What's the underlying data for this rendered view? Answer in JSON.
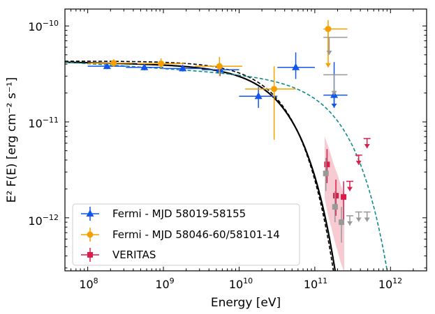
{
  "chart_data": {
    "type": "scatter",
    "xlabel": "Energy [eV]",
    "ylabel": "E² F(E) [erg cm⁻² s⁻¹]",
    "xscale": "log",
    "yscale": "log",
    "xlim": [
      50000000.0,
      3000000000000.0
    ],
    "ylim": [
      2.8e-13,
      1.5e-10
    ],
    "xtick_labels": [
      {
        "base": "10",
        "exp": "8",
        "value": 100000000.0
      },
      {
        "base": "10",
        "exp": "9",
        "value": 1000000000.0
      },
      {
        "base": "10",
        "exp": "10",
        "value": 10000000000.0
      },
      {
        "base": "10",
        "exp": "11",
        "value": 100000000000.0
      },
      {
        "base": "10",
        "exp": "12",
        "value": 1000000000000.0
      }
    ],
    "ytick_labels": [
      {
        "base": "10",
        "exp": "−12",
        "value": 1e-12
      },
      {
        "base": "10",
        "exp": "−11",
        "value": 1e-11
      },
      {
        "base": "10",
        "exp": "−10",
        "value": 1e-10
      }
    ],
    "legend_position": "lower-left",
    "legend": [
      {
        "label": "Fermi - MJD 58019-58155",
        "color": "#1155ee",
        "marker": "triangle"
      },
      {
        "label": "Fermi - MJD 58046-60/58101-14",
        "color": "#f5a000",
        "marker": "circle"
      },
      {
        "label": "VERITAS",
        "color": "#dc1c4a",
        "marker": "plus"
      }
    ],
    "series": [
      {
        "name": "Fermi - MJD 58019-58155",
        "color": "#1155ee",
        "marker": "triangle",
        "points": [
          {
            "x": 180000000.0,
            "y": 3.8e-11,
            "xlo": 100000000.0,
            "xhi": 320000000.0,
            "ylo": 3.55e-11,
            "yhi": 4.1e-11
          },
          {
            "x": 560000000.0,
            "y": 3.7e-11,
            "xlo": 320000000.0,
            "xhi": 1000000000.0,
            "ylo": 3.45e-11,
            "yhi": 3.95e-11
          },
          {
            "x": 1800000000.0,
            "y": 3.6e-11,
            "xlo": 1000000000.0,
            "xhi": 3200000000.0,
            "ylo": 3.35e-11,
            "yhi": 3.9e-11
          },
          {
            "x": 5600000000.0,
            "y": 3.5e-11,
            "xlo": 3200000000.0,
            "xhi": 10000000000.0,
            "ylo": 3e-11,
            "yhi": 4.1e-11
          },
          {
            "x": 18000000000.0,
            "y": 1.85e-11,
            "xlo": 10000000000.0,
            "xhi": 32000000000.0,
            "ylo": 1.4e-11,
            "yhi": 2.3e-11
          },
          {
            "x": 56000000000.0,
            "y": 3.7e-11,
            "xlo": 32000000000.0,
            "xhi": 100000000000.0,
            "ylo": 2.8e-11,
            "yhi": 5.3e-11
          },
          {
            "x": 180000000000.0,
            "y": 1.9e-11,
            "xlo": 130000000000.0,
            "xhi": 270000000000.0,
            "ylo": 1.45e-11,
            "yhi": 4.2e-11,
            "ul_to": 1.4e-11
          }
        ]
      },
      {
        "name": "Fermi - MJD 58046-60/58101-14",
        "color": "#f5a000",
        "marker": "circle",
        "points": [
          {
            "x": 220000000.0,
            "y": 4.1e-11,
            "xlo": 100000000.0,
            "xhi": 390000000.0,
            "ylo": 3.75e-11,
            "yhi": 4.5e-11
          },
          {
            "x": 930000000.0,
            "y": 4.05e-11,
            "xlo": 450000000.0,
            "xhi": 1900000000.0,
            "ylo": 3.6e-11,
            "yhi": 4.6e-11
          },
          {
            "x": 5500000000.0,
            "y": 3.8e-11,
            "xlo": 2600000000.0,
            "xhi": 11000000000.0,
            "ylo": 3e-11,
            "yhi": 4.75e-11
          },
          {
            "x": 29000000000.0,
            "y": 2.2e-11,
            "xlo": 12000000000.0,
            "xhi": 56000000000.0,
            "ylo": 6.5e-12,
            "yhi": 3.8e-11
          },
          {
            "x": 150000000000.0,
            "y": 9.3e-11,
            "xlo": 130000000000.0,
            "xhi": 270000000000.0,
            "ylo": 5e-11,
            "yhi": 1.15e-10,
            "ul_to": 3.7e-11
          }
        ]
      },
      {
        "name": "VERITAS",
        "color": "#dc1c4a",
        "marker": "plus",
        "points": [
          {
            "x": 145000000000.0,
            "y": 3.6e-12,
            "xlo": 135000000000.0,
            "xhi": 155000000000.0,
            "ylo": 2.3e-12,
            "yhi": 5.2e-12
          },
          {
            "x": 190000000000.0,
            "y": 1.7e-12,
            "xlo": 175000000000.0,
            "xhi": 205000000000.0,
            "ylo": 1.05e-12,
            "yhi": 2.5e-12
          },
          {
            "x": 240000000000.0,
            "y": 1.65e-12,
            "xlo": 220000000000.0,
            "xhi": 260000000000.0,
            "ylo": 9.5e-13,
            "yhi": 2.4e-12
          }
        ],
        "upper_limits": [
          {
            "x": 290000000000.0,
            "y": 2.4e-12
          },
          {
            "x": 380000000000.0,
            "y": 4.5e-12
          },
          {
            "x": 490000000000.0,
            "y": 6.7e-12
          }
        ]
      },
      {
        "name": "EBL-absorbed (grey)",
        "color": "#999999",
        "marker": "plus",
        "points": [
          {
            "x": 140000000000.0,
            "y": 2.9e-12,
            "xlo": 130000000000.0,
            "xhi": 150000000000.0,
            "ylo": 1.9e-12,
            "yhi": 4.2e-12
          },
          {
            "x": 185000000000.0,
            "y": 1.3e-12,
            "xlo": 175000000000.0,
            "xhi": 200000000000.0,
            "ylo": 9e-13,
            "yhi": 1.9e-12
          },
          {
            "x": 225000000000.0,
            "y": 9e-13,
            "xlo": 210000000000.0,
            "xhi": 240000000000.0,
            "ylo": 5.5e-13,
            "yhi": 1.3e-12
          }
        ],
        "upper_limits": [
          {
            "x": 290000000000.0,
            "y": 1.05e-12
          },
          {
            "x": 380000000000.0,
            "y": 1.15e-12
          },
          {
            "x": 490000000000.0,
            "y": 1.15e-12
          }
        ],
        "flux_ul_bars": [
          {
            "x": 180000000000.0,
            "xlo": 130000000000.0,
            "xhi": 270000000000.0,
            "y": 3.1e-11,
            "ul_to": 1.9e-11
          },
          {
            "x": 155000000000.0,
            "xlo": 130000000000.0,
            "xhi": 270000000000.0,
            "y": 7.6e-11,
            "ul_to": 5e-11
          }
        ]
      }
    ],
    "veritas_band": {
      "color": "#f4a6b4",
      "x": [
        135000000000.0,
        150000000000.0,
        165000000000.0,
        180000000000.0,
        200000000000.0,
        220000000000.0,
        245000000000.0
      ],
      "upper": [
        7e-12,
        5.6e-12,
        4.4e-12,
        3.5e-12,
        2.8e-12,
        2.2e-12,
        1.7e-12
      ],
      "lower": [
        1.6e-12,
        1.05e-12,
        8e-13,
        6e-13,
        4.5e-13,
        3.4e-13,
        2.7e-13
      ]
    },
    "models": [
      {
        "name": "solid-black",
        "color": "#000000",
        "style": "solid",
        "norm": 4.15e-11,
        "index": 2.015,
        "cutoff": 38000000000.0,
        "xmax": 350000000000.0
      },
      {
        "name": "dashed-black",
        "color": "#000000",
        "style": "dashed",
        "norm": 4.3e-11,
        "index": 2.0,
        "cutoff": 35000000000.0,
        "xmax": 350000000000.0
      },
      {
        "name": "dashed-teal",
        "color": "#0e8a8a",
        "style": "dashed",
        "norm": 4.05e-11,
        "index": 2.05,
        "cutoff": 200000000000.0,
        "xmax": 1000000000000.0
      }
    ]
  }
}
